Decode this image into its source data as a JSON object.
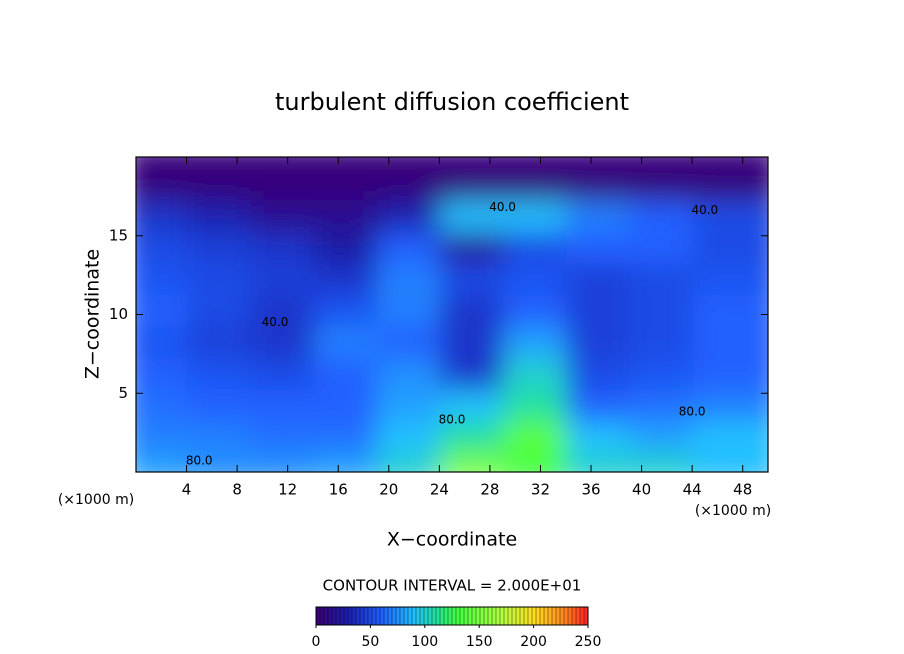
{
  "chart_data": {
    "type": "heatmap",
    "title": "turbulent diffusion coefficient",
    "x_label": "X−coordinate",
    "y_label": "Z−coordinate",
    "x_unit": "(×1000 m)",
    "y_unit": "(×1000 m)",
    "contour_note": "CONTOUR INTERVAL = 2.000E+01",
    "xlim": [
      0,
      50
    ],
    "ylim": [
      0,
      20
    ],
    "xticks": [
      4,
      8,
      12,
      16,
      20,
      24,
      28,
      32,
      36,
      40,
      44,
      48
    ],
    "yticks": [
      5,
      10,
      15
    ],
    "x": [
      2.5,
      7.5,
      12.5,
      17.5,
      22.5,
      27.5,
      32.5,
      37.5,
      42.5,
      47.5
    ],
    "y": [
      1,
      3,
      5,
      7,
      9,
      11,
      13,
      15,
      17,
      19
    ],
    "values": [
      [
        80,
        75,
        75,
        80,
        100,
        150,
        130,
        100,
        100,
        90
      ],
      [
        70,
        70,
        65,
        65,
        90,
        110,
        140,
        90,
        80,
        90
      ],
      [
        65,
        60,
        60,
        60,
        80,
        90,
        110,
        60,
        65,
        70
      ],
      [
        60,
        55,
        50,
        60,
        75,
        40,
        100,
        50,
        55,
        60
      ],
      [
        55,
        45,
        40,
        70,
        60,
        40,
        80,
        45,
        50,
        60
      ],
      [
        60,
        50,
        40,
        55,
        70,
        40,
        60,
        45,
        50,
        60
      ],
      [
        55,
        50,
        45,
        40,
        70,
        50,
        55,
        45,
        50,
        55
      ],
      [
        50,
        45,
        40,
        25,
        60,
        20,
        50,
        60,
        60,
        50
      ],
      [
        40,
        30,
        15,
        15,
        30,
        90,
        90,
        70,
        60,
        50
      ],
      [
        5,
        5,
        5,
        5,
        5,
        5,
        5,
        5,
        5,
        5
      ]
    ],
    "contour_labels": [
      {
        "label": "80.0",
        "x": 5,
        "y": 0.7
      },
      {
        "label": "40.0",
        "x": 11,
        "y": 9.5
      },
      {
        "label": "40.0",
        "x": 29,
        "y": 16.8
      },
      {
        "label": "40.0",
        "x": 45,
        "y": 16.6
      },
      {
        "label": "80.0",
        "x": 25,
        "y": 3.3
      },
      {
        "label": "80.0",
        "x": 44,
        "y": 3.8
      }
    ],
    "colorbar": {
      "lim": [
        0,
        250
      ],
      "ticks": [
        0,
        50,
        100,
        150,
        200,
        250
      ]
    },
    "colorscale": [
      [
        0,
        "#3a0070"
      ],
      [
        30,
        "#1a20b0"
      ],
      [
        60,
        "#2060ff"
      ],
      [
        90,
        "#20c0ff"
      ],
      [
        110,
        "#20e0a0"
      ],
      [
        130,
        "#40ff40"
      ],
      [
        170,
        "#b0ff40"
      ],
      [
        200,
        "#ffe020"
      ],
      [
        230,
        "#ff8020"
      ],
      [
        250,
        "#ff2020"
      ]
    ]
  }
}
